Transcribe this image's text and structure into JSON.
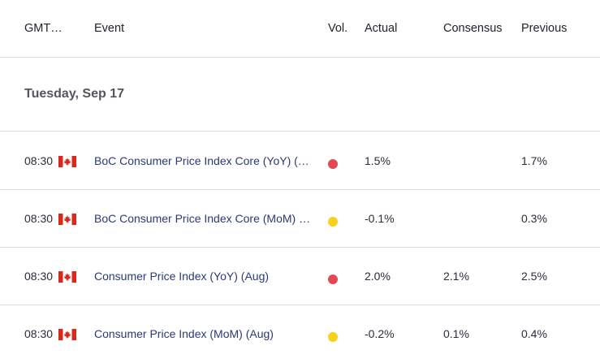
{
  "header": {
    "gmt": "GMT…",
    "event": "Event",
    "vol": "Vol.",
    "actual": "Actual",
    "consensus": "Consensus",
    "previous": "Previous"
  },
  "date_label": "Tuesday, Sep 17",
  "colors": {
    "high": "#e04a55",
    "medium": "#f7d21c",
    "flag_red": "#d52b1e",
    "event_text": "#283a78"
  },
  "rows": [
    {
      "time": "08:30",
      "flag": "canada-flag-icon",
      "event": "BoC Consumer Price Index Core (YoY) (…",
      "volatility": "high",
      "actual": "1.5%",
      "consensus": "",
      "previous": "1.7%"
    },
    {
      "time": "08:30",
      "flag": "canada-flag-icon",
      "event": "BoC Consumer Price Index Core (MoM) …",
      "volatility": "medium",
      "actual": "-0.1%",
      "consensus": "",
      "previous": "0.3%"
    },
    {
      "time": "08:30",
      "flag": "canada-flag-icon",
      "event": "Consumer Price Index (YoY) (Aug)",
      "volatility": "high",
      "actual": "2.0%",
      "consensus": "2.1%",
      "previous": "2.5%"
    },
    {
      "time": "08:30",
      "flag": "canada-flag-icon",
      "event": "Consumer Price Index (MoM) (Aug)",
      "volatility": "medium",
      "actual": "-0.2%",
      "consensus": "0.1%",
      "previous": "0.4%"
    }
  ]
}
